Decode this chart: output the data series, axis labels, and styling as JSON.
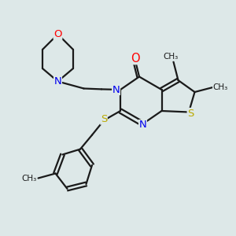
{
  "background_color": "#dde8e8",
  "bond_color": "#1a1a1a",
  "atom_colors": {
    "O": "#ff0000",
    "N": "#0000ee",
    "S": "#bbaa00",
    "C": "#1a1a1a"
  },
  "figsize": [
    3.0,
    3.0
  ],
  "dpi": 100,
  "xlim": [
    0,
    10
  ],
  "ylim": [
    0,
    10
  ]
}
